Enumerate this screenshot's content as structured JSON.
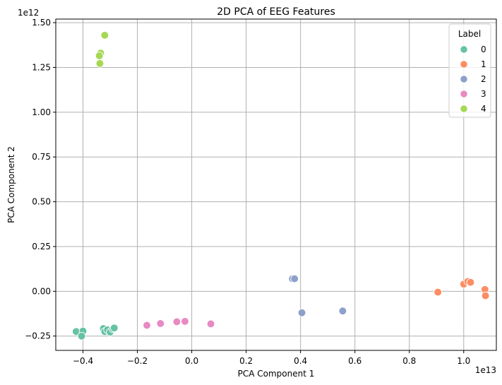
{
  "chart_data": {
    "type": "scatter",
    "title": "2D PCA of EEG Features",
    "xlabel": "PCA Component 1",
    "ylabel": "PCA Component 2",
    "x_scale_label": "1e13",
    "y_scale_label": "1e12",
    "x_scale": 10000000000000.0,
    "y_scale": 1000000000000.0,
    "xlim": [
      -0.5,
      1.12
    ],
    "ylim": [
      -0.33,
      1.52
    ],
    "xticks": [
      -0.4,
      -0.2,
      0.0,
      0.2,
      0.4,
      0.6,
      0.8,
      1.0
    ],
    "xtick_labels": [
      "−0.4",
      "−0.2",
      "0.0",
      "0.2",
      "0.4",
      "0.6",
      "0.8",
      "1.0"
    ],
    "yticks": [
      -0.25,
      0.0,
      0.25,
      0.5,
      0.75,
      1.0,
      1.25,
      1.5
    ],
    "ytick_labels": [
      "−0.25",
      "0.00",
      "0.25",
      "0.50",
      "0.75",
      "1.00",
      "1.25",
      "1.50"
    ],
    "grid": true,
    "legend": {
      "title": "Label",
      "placement": "top-right"
    },
    "series": [
      {
        "name": "0",
        "color": "#66c2a5",
        "points": [
          {
            "x": -0.425,
            "y": -0.225
          },
          {
            "x": -0.4,
            "y": -0.222
          },
          {
            "x": -0.405,
            "y": -0.25
          },
          {
            "x": -0.325,
            "y": -0.208
          },
          {
            "x": -0.32,
            "y": -0.225
          },
          {
            "x": -0.31,
            "y": -0.215
          },
          {
            "x": -0.3,
            "y": -0.228
          },
          {
            "x": -0.29,
            "y": -0.21
          },
          {
            "x": -0.285,
            "y": -0.205
          }
        ]
      },
      {
        "name": "1",
        "color": "#fc8d62",
        "points": [
          {
            "x": 0.905,
            "y": -0.005
          },
          {
            "x": 1.0,
            "y": 0.04
          },
          {
            "x": 1.015,
            "y": 0.055
          },
          {
            "x": 1.025,
            "y": 0.05
          },
          {
            "x": 1.078,
            "y": 0.01
          },
          {
            "x": 1.08,
            "y": -0.025
          }
        ]
      },
      {
        "name": "2",
        "color": "#8da0cb",
        "points": [
          {
            "x": 0.37,
            "y": 0.07
          },
          {
            "x": 0.378,
            "y": 0.07
          },
          {
            "x": 0.405,
            "y": -0.12
          },
          {
            "x": 0.555,
            "y": -0.11
          }
        ]
      },
      {
        "name": "3",
        "color": "#e78ac3",
        "points": [
          {
            "x": -0.165,
            "y": -0.19
          },
          {
            "x": -0.115,
            "y": -0.18
          },
          {
            "x": -0.055,
            "y": -0.17
          },
          {
            "x": -0.025,
            "y": -0.168
          },
          {
            "x": 0.07,
            "y": -0.182
          }
        ]
      },
      {
        "name": "4",
        "color": "#a6d854",
        "points": [
          {
            "x": -0.32,
            "y": 1.43
          },
          {
            "x": -0.335,
            "y": 1.33
          },
          {
            "x": -0.34,
            "y": 1.315
          },
          {
            "x": -0.338,
            "y": 1.272
          }
        ]
      }
    ]
  }
}
